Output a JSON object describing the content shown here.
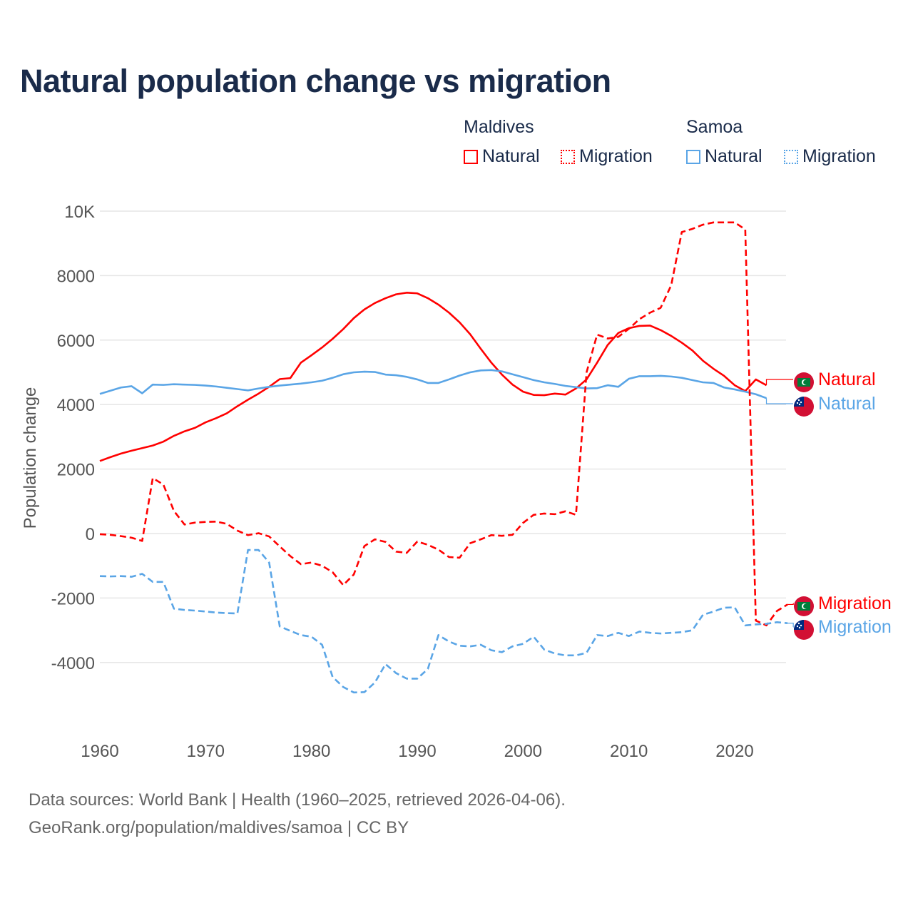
{
  "title": "Natural population change vs migration",
  "legend": {
    "groups": [
      {
        "name": "Maldives",
        "color": "#ff0000",
        "items": [
          "Natural",
          "Migration"
        ]
      },
      {
        "name": "Samoa",
        "color": "#5aa5e6",
        "items": [
          "Natural",
          "Migration"
        ]
      }
    ]
  },
  "footer": {
    "line1": "Data sources: World Bank | Health (1960–2025, retrieved 2026-04-06).",
    "line2": "GeoRank.org/population/maldives/samoa | CC BY"
  },
  "chart_data": {
    "type": "line",
    "title": "Natural population change vs migration",
    "xlabel": "",
    "ylabel": "Population change",
    "xlim": [
      1960,
      2025
    ],
    "ylim": [
      -5000,
      10000
    ],
    "xticks": [
      1960,
      1970,
      1980,
      1990,
      2000,
      2010,
      2020
    ],
    "yticks": [
      {
        "value": 10000,
        "label": "10K"
      },
      {
        "value": 8000,
        "label": "8000"
      },
      {
        "value": 6000,
        "label": "6000"
      },
      {
        "value": 4000,
        "label": "4000"
      },
      {
        "value": 2000,
        "label": "2000"
      },
      {
        "value": 0,
        "label": "0"
      },
      {
        "value": -2000,
        "label": "-2000"
      },
      {
        "value": -4000,
        "label": "-4000"
      }
    ],
    "grid": true,
    "legend_position": "top-right",
    "series": [
      {
        "name": "Maldives Natural",
        "end_label": "Natural",
        "country": "Maldives",
        "color": "#ff0000",
        "dash": "solid",
        "start": 1960,
        "values": [
          2250,
          2370,
          2480,
          2570,
          2650,
          2730,
          2850,
          3030,
          3170,
          3280,
          3450,
          3580,
          3730,
          3950,
          4150,
          4340,
          4550,
          4790,
          4820,
          5300,
          5530,
          5770,
          6040,
          6340,
          6680,
          6950,
          7150,
          7300,
          7420,
          7470,
          7450,
          7300,
          7100,
          6850,
          6550,
          6180,
          5730,
          5300,
          4930,
          4620,
          4400,
          4300,
          4290,
          4340,
          4310,
          4500,
          4780,
          5300,
          5850,
          6220,
          6370,
          6440,
          6450,
          6310,
          6130,
          5920,
          5680,
          5360,
          5110,
          4890,
          4600,
          4420,
          4780,
          4600
        ]
      },
      {
        "name": "Samoa Natural",
        "end_label": "Natural",
        "country": "Samoa",
        "color": "#5aa5e6",
        "dash": "solid",
        "start": 1960,
        "values": [
          4330,
          4430,
          4530,
          4570,
          4350,
          4620,
          4610,
          4630,
          4620,
          4610,
          4590,
          4560,
          4520,
          4480,
          4440,
          4500,
          4550,
          4590,
          4620,
          4650,
          4690,
          4740,
          4830,
          4940,
          5000,
          5020,
          5010,
          4930,
          4910,
          4860,
          4780,
          4670,
          4670,
          4780,
          4900,
          5000,
          5060,
          5070,
          5030,
          4940,
          4850,
          4760,
          4690,
          4640,
          4580,
          4540,
          4500,
          4510,
          4600,
          4550,
          4800,
          4880,
          4880,
          4890,
          4870,
          4830,
          4760,
          4690,
          4670,
          4530,
          4470,
          4400,
          4320,
          4200
        ]
      },
      {
        "name": "Maldives Migration",
        "end_label": "Migration",
        "country": "Maldives",
        "color": "#ff0000",
        "dash": "dashed",
        "start": 1960,
        "values": [
          -20,
          -40,
          -80,
          -130,
          -230,
          1720,
          1520,
          700,
          280,
          340,
          360,
          370,
          300,
          90,
          -50,
          10,
          -90,
          -400,
          -700,
          -950,
          -900,
          -1000,
          -1200,
          -1600,
          -1270,
          -390,
          -180,
          -260,
          -560,
          -600,
          -250,
          -350,
          -500,
          -730,
          -750,
          -300,
          -180,
          -50,
          -70,
          -40,
          330,
          580,
          620,
          600,
          690,
          580,
          5000,
          6170,
          6050,
          6100,
          6350,
          6650,
          6850,
          7000,
          7700,
          9350,
          9450,
          9580,
          9650,
          9650,
          9650,
          9430,
          -2700,
          -2850,
          -2400,
          -2200
        ]
      },
      {
        "name": "Samoa Migration",
        "end_label": "Migration",
        "country": "Samoa",
        "color": "#5aa5e6",
        "dash": "dashed",
        "start": 1960,
        "values": [
          -1320,
          -1330,
          -1320,
          -1340,
          -1250,
          -1500,
          -1500,
          -2330,
          -2370,
          -2390,
          -2420,
          -2450,
          -2470,
          -2480,
          -510,
          -510,
          -900,
          -2880,
          -3020,
          -3150,
          -3200,
          -3450,
          -4450,
          -4760,
          -4930,
          -4920,
          -4620,
          -4050,
          -4330,
          -4500,
          -4500,
          -4200,
          -3150,
          -3350,
          -3480,
          -3500,
          -3450,
          -3620,
          -3680,
          -3500,
          -3420,
          -3200,
          -3600,
          -3720,
          -3780,
          -3780,
          -3700,
          -3150,
          -3180,
          -3080,
          -3180,
          -3040,
          -3080,
          -3100,
          -3080,
          -3060,
          -3000,
          -2520,
          -2420,
          -2300,
          -2290,
          -2850,
          -2820,
          -2800,
          -2750,
          -2780
        ]
      }
    ]
  }
}
